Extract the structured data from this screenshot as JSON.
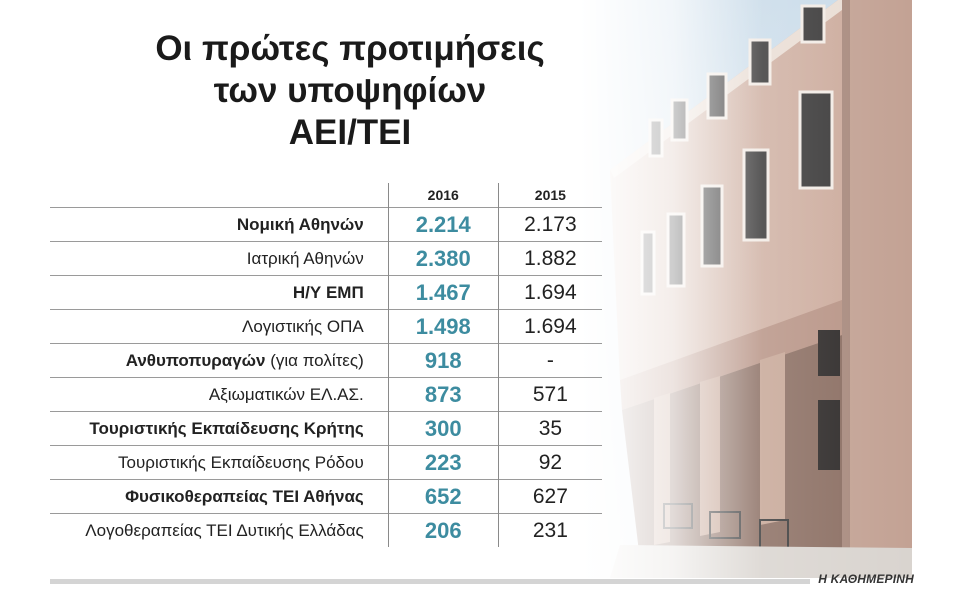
{
  "title_lines": [
    "Οι πρώτες προτιμήσεις",
    "των υποψηφίων",
    "ΑΕΙ/ΤΕΙ"
  ],
  "credit": "Η ΚΑΘΗΜΕΡΙΝΗ",
  "colors": {
    "accent_value": "#3d8ca0",
    "text": "#222222",
    "rule": "#d4d4d4"
  },
  "chart_data": {
    "type": "table",
    "columns": [
      "2016",
      "2015"
    ],
    "rows": [
      {
        "label": "Νομική Αθηνών",
        "note": "",
        "bold": true,
        "values": [
          "2.214",
          "2.173"
        ]
      },
      {
        "label": "Ιατρική Αθηνών",
        "note": "",
        "bold": false,
        "values": [
          "2.380",
          "1.882"
        ]
      },
      {
        "label": "Η/Υ ΕΜΠ",
        "note": "",
        "bold": true,
        "values": [
          "1.467",
          "1.694"
        ]
      },
      {
        "label": "Λογιστικής ΟΠΑ",
        "note": "",
        "bold": false,
        "values": [
          "1.498",
          "1.694"
        ]
      },
      {
        "label": "Ανθυποπυραγών",
        "note": " (για πολίτες)",
        "bold": true,
        "values": [
          "918",
          "-"
        ]
      },
      {
        "label": "Αξιωματικών ΕΛ.ΑΣ.",
        "note": "",
        "bold": false,
        "values": [
          "873",
          "571"
        ]
      },
      {
        "label": "Τουριστικής Εκπαίδευσης Κρήτης",
        "note": "",
        "bold": true,
        "values": [
          "300",
          "35"
        ]
      },
      {
        "label": "Τουριστικής Εκπαίδευσης Ρόδου",
        "note": "",
        "bold": false,
        "values": [
          "223",
          "92"
        ]
      },
      {
        "label": "Φυσικοθεραπείας ΤΕΙ Αθήνας",
        "note": "",
        "bold": true,
        "values": [
          "652",
          "627"
        ]
      },
      {
        "label": "Λογοθεραπείας ΤΕΙ Δυτικής Ελλάδας",
        "note": "",
        "bold": false,
        "values": [
          "206",
          "231"
        ]
      }
    ]
  }
}
